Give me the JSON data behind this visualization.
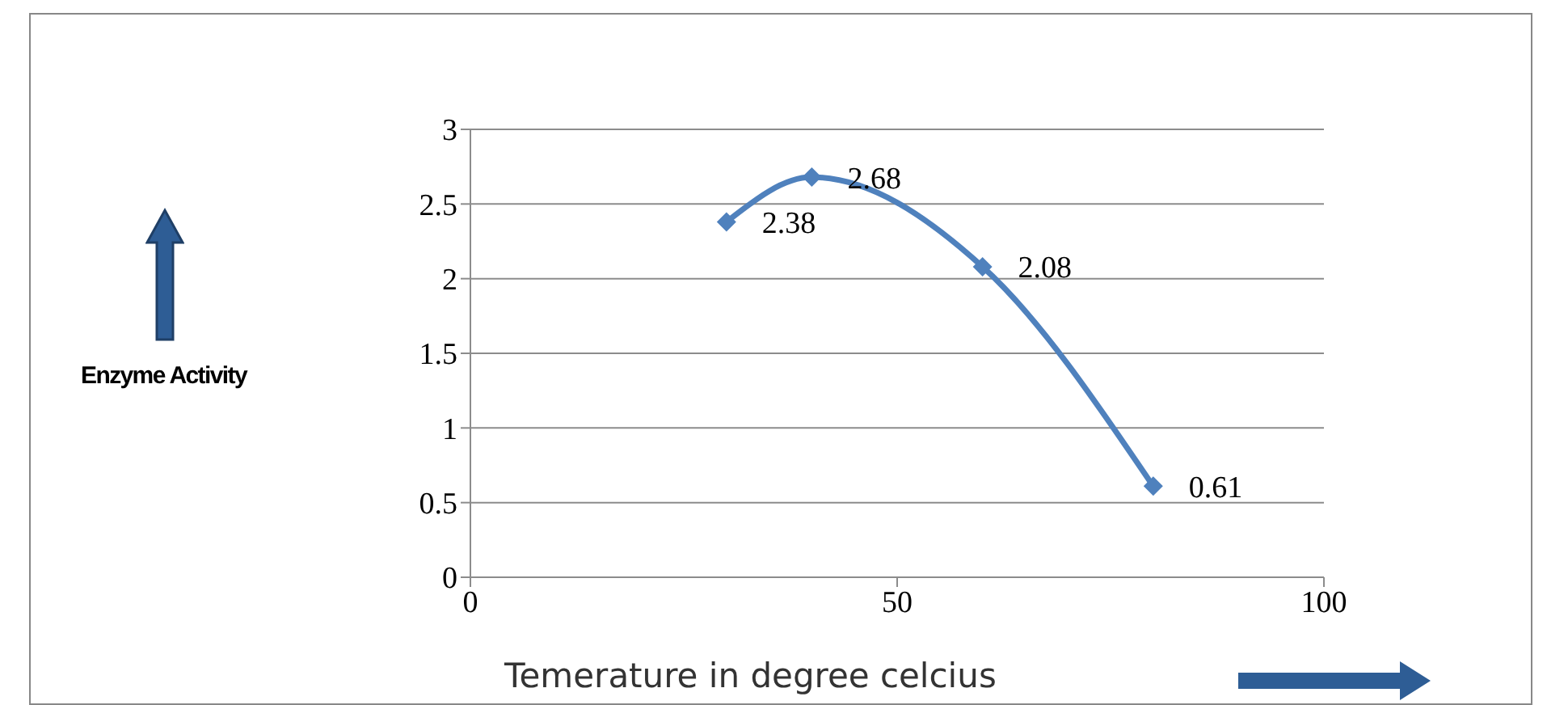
{
  "chart_data": {
    "type": "line",
    "xlabel": "Temerature in degree celcius",
    "annotations": [
      "Enzyme Activity"
    ],
    "x": [
      30,
      40,
      60,
      80
    ],
    "series": [
      {
        "color": "#4f81bd",
        "values": [
          2.38,
          2.68,
          2.08,
          0.61
        ]
      }
    ],
    "xlim": [
      0,
      100
    ],
    "xticks": [
      0,
      50,
      100
    ],
    "ylim": [
      0,
      3
    ],
    "yticks": [
      0,
      0.5,
      1,
      1.5,
      2,
      2.5,
      3
    ],
    "grid": "y",
    "marker": "diamond",
    "line_style": "solid",
    "data_labels": true
  }
}
